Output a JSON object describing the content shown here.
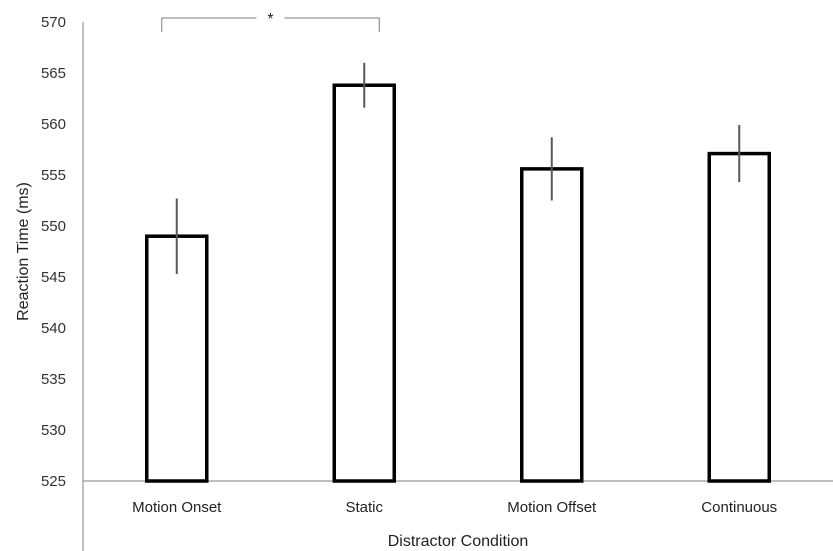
{
  "chart_data": {
    "type": "bar",
    "title": "",
    "xlabel": "Distractor Condition",
    "ylabel": "Reaction Time (ms)",
    "categories": [
      "Motion Onset",
      "Static",
      "Motion Offset",
      "Continuous"
    ],
    "values": [
      549.0,
      563.8,
      555.6,
      557.1
    ],
    "error": [
      3.7,
      2.2,
      3.1,
      2.8
    ],
    "ylim": [
      525,
      570
    ],
    "yticks": [
      525,
      530,
      535,
      540,
      545,
      550,
      555,
      560,
      565,
      570
    ],
    "grid": false,
    "legend": "none",
    "significance": [
      {
        "from": "Motion Onset",
        "to": "Static",
        "label": "*"
      }
    ],
    "colors": {
      "bar_fill": "#ffffff",
      "bar_stroke": "#000000",
      "error_bar": "#595959",
      "axis": "#7f7f7f",
      "bracket": "#7f7f7f"
    }
  }
}
